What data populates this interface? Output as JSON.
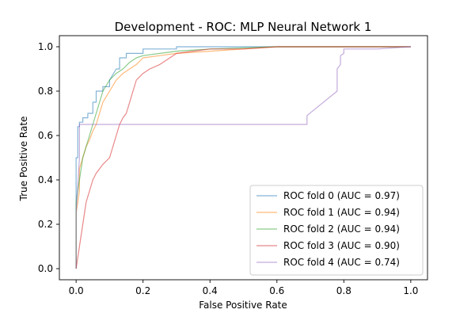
{
  "chart_data": {
    "type": "line",
    "title": "Development - ROC: MLP Neural Network 1",
    "xlabel": "False Positive Rate",
    "ylabel": "True Positive Rate",
    "xlim": [
      -0.05,
      1.05
    ],
    "ylim": [
      -0.05,
      1.05
    ],
    "xticks": [
      0.0,
      0.2,
      0.4,
      0.6,
      0.8,
      1.0
    ],
    "yticks": [
      0.0,
      0.2,
      0.4,
      0.6,
      0.8,
      1.0
    ],
    "xtick_labels": [
      "0.0",
      "0.2",
      "0.4",
      "0.6",
      "0.8",
      "1.0"
    ],
    "ytick_labels": [
      "0.0",
      "0.2",
      "0.4",
      "0.6",
      "0.8",
      "1.0"
    ],
    "grid": false,
    "legend_position": "lower-right",
    "series": [
      {
        "name": "ROC fold 0 (AUC = 0.97)",
        "color": "#1f77b4",
        "x": [
          0.0,
          0.0,
          0.005,
          0.005,
          0.01,
          0.01,
          0.02,
          0.02,
          0.035,
          0.035,
          0.05,
          0.05,
          0.06,
          0.06,
          0.08,
          0.08,
          0.1,
          0.1,
          0.12,
          0.13,
          0.13,
          0.15,
          0.15,
          0.2,
          0.2,
          0.3,
          0.3,
          0.5,
          1.0
        ],
        "y": [
          0.0,
          0.5,
          0.5,
          0.64,
          0.64,
          0.66,
          0.66,
          0.68,
          0.68,
          0.7,
          0.7,
          0.75,
          0.75,
          0.8,
          0.8,
          0.82,
          0.82,
          0.85,
          0.9,
          0.9,
          0.95,
          0.95,
          0.97,
          0.97,
          0.99,
          0.99,
          1.0,
          1.0,
          1.0
        ]
      },
      {
        "name": "ROC fold 1 (AUC = 0.94)",
        "color": "#ff7f0e",
        "x": [
          0.0,
          0.0,
          0.01,
          0.01,
          0.02,
          0.03,
          0.04,
          0.05,
          0.06,
          0.07,
          0.08,
          0.1,
          0.12,
          0.14,
          0.16,
          0.18,
          0.2,
          0.25,
          0.3,
          0.4,
          0.5,
          0.6,
          1.0
        ],
        "y": [
          0.0,
          0.25,
          0.35,
          0.45,
          0.5,
          0.55,
          0.58,
          0.62,
          0.65,
          0.7,
          0.75,
          0.8,
          0.85,
          0.88,
          0.9,
          0.92,
          0.95,
          0.96,
          0.97,
          0.98,
          0.99,
          1.0,
          1.0
        ]
      },
      {
        "name": "ROC fold 2 (AUC = 0.94)",
        "color": "#2ca02c",
        "x": [
          0.0,
          0.0,
          0.01,
          0.02,
          0.03,
          0.04,
          0.05,
          0.06,
          0.07,
          0.08,
          0.1,
          0.12,
          0.14,
          0.16,
          0.18,
          0.2,
          0.25,
          0.3,
          0.4,
          0.6,
          0.8,
          1.0
        ],
        "y": [
          0.0,
          0.3,
          0.4,
          0.5,
          0.55,
          0.6,
          0.65,
          0.7,
          0.75,
          0.8,
          0.85,
          0.88,
          0.9,
          0.93,
          0.95,
          0.96,
          0.97,
          0.98,
          0.99,
          1.0,
          1.0,
          1.0
        ]
      },
      {
        "name": "ROC fold 3 (AUC = 0.90)",
        "color": "#d62728",
        "x": [
          0.0,
          0.01,
          0.02,
          0.03,
          0.04,
          0.05,
          0.06,
          0.08,
          0.1,
          0.11,
          0.12,
          0.13,
          0.14,
          0.15,
          0.16,
          0.17,
          0.18,
          0.2,
          0.22,
          0.25,
          0.28,
          0.3,
          0.35,
          0.4,
          0.5,
          0.6,
          0.8,
          1.0
        ],
        "y": [
          0.0,
          0.1,
          0.2,
          0.3,
          0.35,
          0.4,
          0.43,
          0.47,
          0.5,
          0.55,
          0.6,
          0.65,
          0.68,
          0.7,
          0.75,
          0.8,
          0.85,
          0.88,
          0.9,
          0.92,
          0.95,
          0.97,
          0.98,
          0.99,
          0.99,
          1.0,
          1.0,
          1.0
        ]
      },
      {
        "name": "ROC fold 4 (AUC = 0.74)",
        "color": "#9467bd",
        "x": [
          0.0,
          0.0,
          0.01,
          0.01,
          0.69,
          0.69,
          0.78,
          0.78,
          0.79,
          0.79,
          0.8,
          0.8,
          0.9,
          1.0
        ],
        "y": [
          0.0,
          0.25,
          0.5,
          0.65,
          0.65,
          0.69,
          0.8,
          0.9,
          0.92,
          0.96,
          0.97,
          0.99,
          0.99,
          1.0
        ]
      }
    ]
  }
}
